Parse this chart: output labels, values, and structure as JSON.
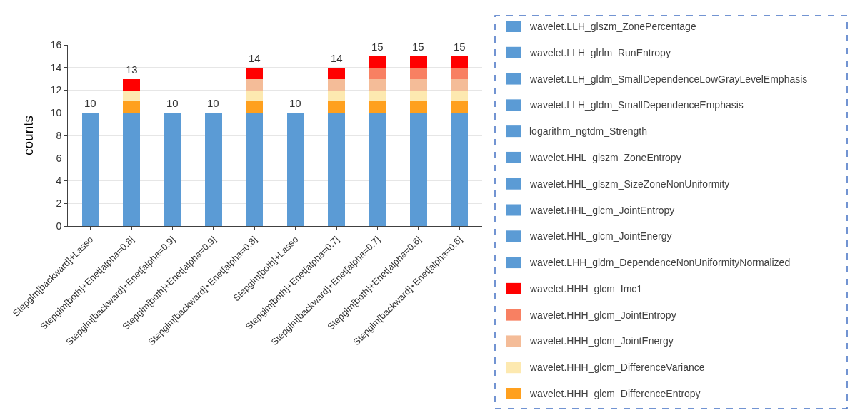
{
  "chart_data": {
    "type": "bar",
    "stacked": true,
    "ylabel": "counts",
    "categories": [
      "Stepglm[backward]+Lasso",
      "Stepglm[both]+Enet[alpha=0.8]",
      "Stepglm[backward]+Enet[alpha=0.9]",
      "Stepglm[both]+Enet[alpha=0.9]",
      "Stepglm[backward]+Enet[alpha=0.8]",
      "Stepglm[both]+Lasso",
      "Stepglm[both]+Enet[alpha=0.7]",
      "Stepglm[backward]+Enet[alpha=0.7]",
      "Stepglm[both]+Enet[alpha=0.6]",
      "Stepglm[backward]+Enet[alpha=0.6]"
    ],
    "ylim": [
      0,
      16
    ],
    "yticks": [
      0,
      2,
      4,
      6,
      8,
      10,
      12,
      14,
      16
    ],
    "grid": "y",
    "legend": "right",
    "totals": [
      "10",
      "13",
      "10",
      "10",
      "14",
      "10",
      "14",
      "15",
      "15",
      "15"
    ],
    "series": [
      {
        "name": "wavelet.LLH_glszm_ZonePercentage",
        "color": "#5b9bd5",
        "values": [
          1,
          1,
          1,
          1,
          1,
          1,
          1,
          1,
          1,
          1
        ]
      },
      {
        "name": "wavelet.LLH_glrlm_RunEntropy",
        "color": "#5b9bd5",
        "values": [
          1,
          1,
          1,
          1,
          1,
          1,
          1,
          1,
          1,
          1
        ]
      },
      {
        "name": "wavelet.LLH_gldm_SmallDependenceLowGrayLevelEmphasis",
        "color": "#5b9bd5",
        "values": [
          1,
          1,
          1,
          1,
          1,
          1,
          1,
          1,
          1,
          1
        ]
      },
      {
        "name": "wavelet.LLH_gldm_SmallDependenceEmphasis",
        "color": "#5b9bd5",
        "values": [
          1,
          1,
          1,
          1,
          1,
          1,
          1,
          1,
          1,
          1
        ]
      },
      {
        "name": "logarithm_ngtdm_Strength",
        "color": "#5b9bd5",
        "values": [
          1,
          1,
          1,
          1,
          1,
          1,
          1,
          1,
          1,
          1
        ]
      },
      {
        "name": "wavelet.HHL_glszm_ZoneEntropy",
        "color": "#5b9bd5",
        "values": [
          1,
          1,
          1,
          1,
          1,
          1,
          1,
          1,
          1,
          1
        ]
      },
      {
        "name": "wavelet.HHL_glszm_SizeZoneNonUniformity",
        "color": "#5b9bd5",
        "values": [
          1,
          1,
          1,
          1,
          1,
          1,
          1,
          1,
          1,
          1
        ]
      },
      {
        "name": "wavelet.HHL_glcm_JointEntropy",
        "color": "#5b9bd5",
        "values": [
          1,
          1,
          1,
          1,
          1,
          1,
          1,
          1,
          1,
          1
        ]
      },
      {
        "name": "wavelet.HHL_glcm_JointEnergy",
        "color": "#5b9bd5",
        "values": [
          1,
          1,
          1,
          1,
          1,
          1,
          1,
          1,
          1,
          1
        ]
      },
      {
        "name": "wavelet.LHH_gldm_DependenceNonUniformityNormalized",
        "color": "#5b9bd5",
        "values": [
          1,
          1,
          1,
          1,
          1,
          1,
          1,
          1,
          1,
          1
        ]
      },
      {
        "name": "wavelet.HHH_glcm_DifferenceEntropy",
        "color": "#ffa01e",
        "values": [
          0,
          1,
          0,
          0,
          1,
          0,
          1,
          1,
          1,
          1
        ]
      },
      {
        "name": "wavelet.HHH_glcm_DifferenceVariance",
        "color": "#fde9b0",
        "values": [
          0,
          1,
          0,
          0,
          1,
          0,
          1,
          1,
          1,
          1
        ]
      },
      {
        "name": "wavelet.HHH_glcm_JointEnergy",
        "color": "#f4bc98",
        "values": [
          0,
          0,
          0,
          0,
          1,
          0,
          1,
          1,
          1,
          1
        ]
      },
      {
        "name": "wavelet.HHH_glcm_JointEntropy",
        "color": "#f88062",
        "values": [
          0,
          0,
          0,
          0,
          0,
          0,
          0,
          1,
          1,
          1
        ]
      },
      {
        "name": "wavelet.HHH_glcm_Imc1",
        "color": "#ff0000",
        "values": [
          0,
          1,
          0,
          0,
          1,
          0,
          1,
          1,
          1,
          1
        ]
      }
    ]
  }
}
